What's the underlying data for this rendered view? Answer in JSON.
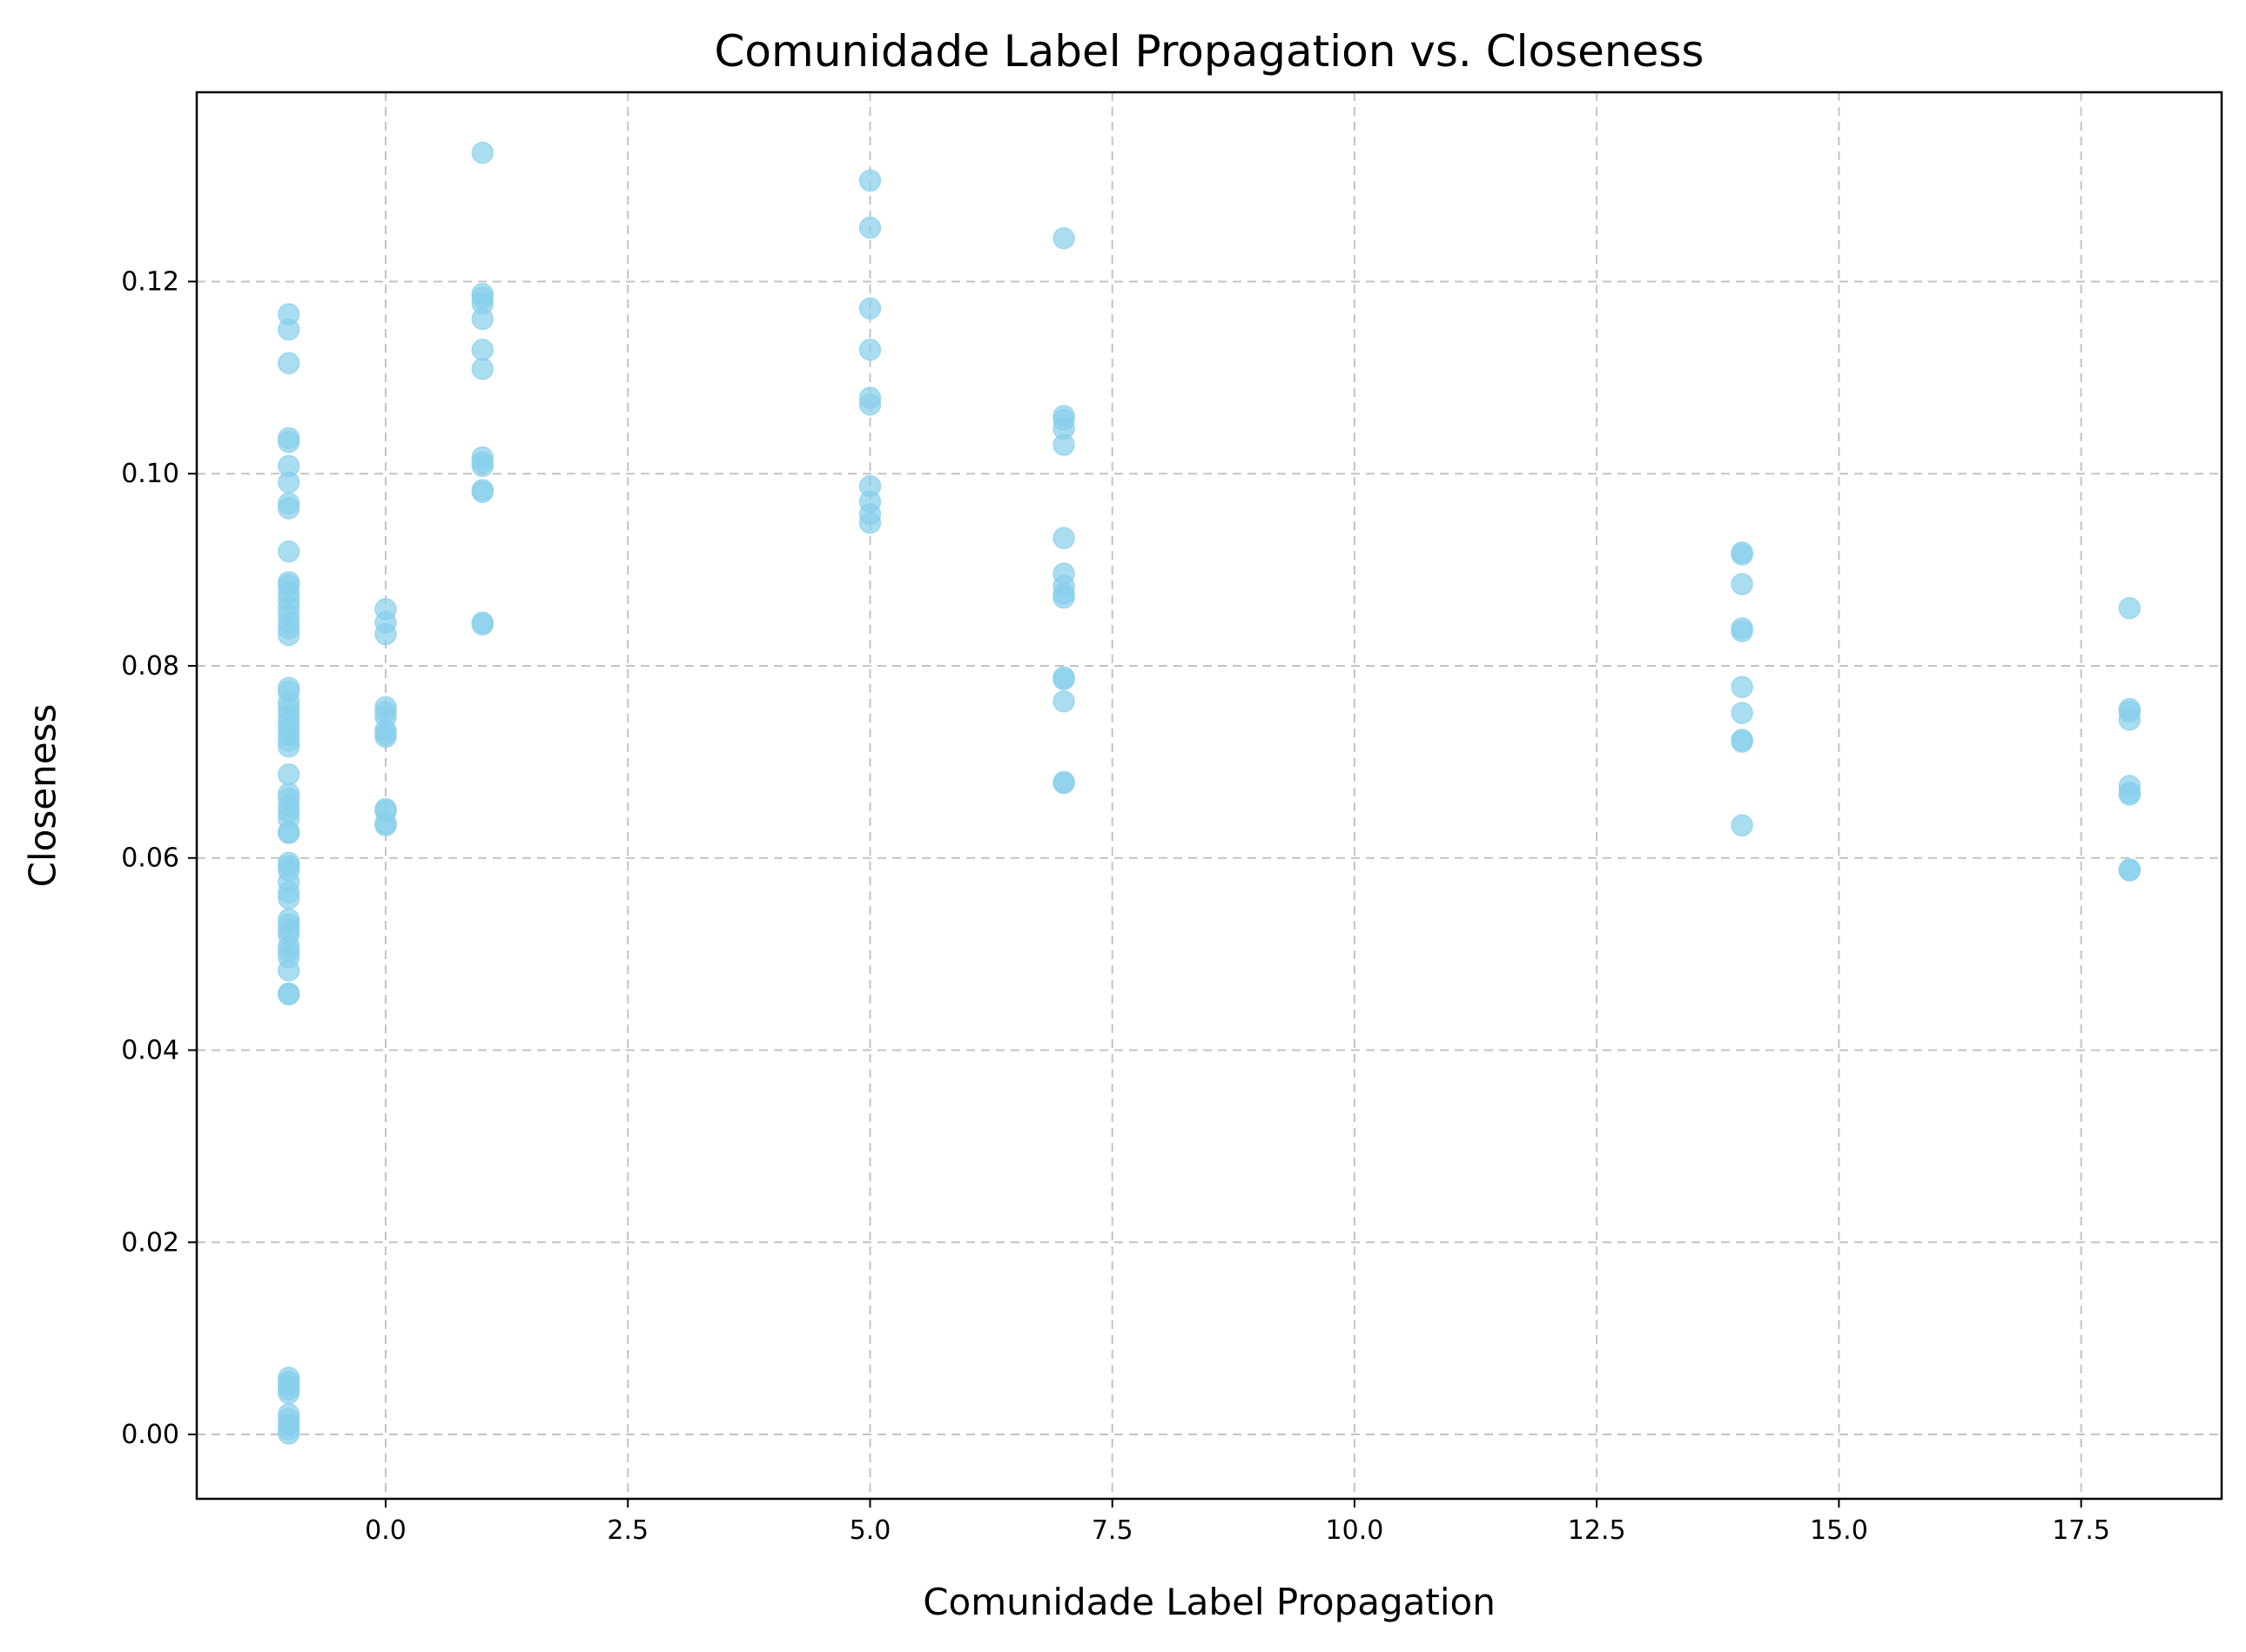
{
  "chart_data": {
    "type": "scatter",
    "title": "Comunidade Label Propagation vs. Closeness",
    "xlabel": "Comunidade Label Propagation",
    "ylabel": "Closeness",
    "xlim": [
      -1.95,
      18.95
    ],
    "ylim": [
      -0.0067,
      0.1397
    ],
    "xticks": [
      0.0,
      2.5,
      5.0,
      7.5,
      10.0,
      12.5,
      15.0,
      17.5
    ],
    "xtick_labels": [
      "0.0",
      "2.5",
      "5.0",
      "7.5",
      "10.0",
      "12.5",
      "15.0",
      "17.5"
    ],
    "yticks": [
      0.0,
      0.02,
      0.04,
      0.06,
      0.08,
      0.1,
      0.12
    ],
    "ytick_labels": [
      "0.00",
      "0.02",
      "0.04",
      "0.06",
      "0.08",
      "0.10",
      "0.12"
    ],
    "grid": true,
    "marker_color": "#87CEEB",
    "marker_alpha": 0.7,
    "series": [
      {
        "points": [
          [
            -1,
            0.1166
          ],
          [
            -1,
            0.115
          ],
          [
            -1,
            0.1115
          ],
          [
            -1,
            0.1037
          ],
          [
            -1,
            0.1033
          ],
          [
            -1,
            0.1008
          ],
          [
            -1,
            0.0991
          ],
          [
            -1,
            0.0969
          ],
          [
            -1,
            0.0964
          ],
          [
            -1,
            0.0919
          ],
          [
            -1,
            0.0887
          ],
          [
            -1,
            0.0884
          ],
          [
            -1,
            0.0876
          ],
          [
            -1,
            0.0869
          ],
          [
            -1,
            0.0861
          ],
          [
            -1,
            0.0853
          ],
          [
            -1,
            0.0845
          ],
          [
            -1,
            0.0839
          ],
          [
            -1,
            0.0832
          ],
          [
            -1,
            0.0777
          ],
          [
            -1,
            0.0773
          ],
          [
            -1,
            0.0762
          ],
          [
            -1,
            0.0755
          ],
          [
            -1,
            0.0748
          ],
          [
            -1,
            0.0741
          ],
          [
            -1,
            0.0735
          ],
          [
            -1,
            0.0728
          ],
          [
            -1,
            0.0722
          ],
          [
            -1,
            0.0716
          ],
          [
            -1,
            0.0687
          ],
          [
            -1,
            0.0667
          ],
          [
            -1,
            0.0662
          ],
          [
            -1,
            0.0654
          ],
          [
            -1,
            0.0648
          ],
          [
            -1,
            0.0641
          ],
          [
            -1,
            0.0627
          ],
          [
            -1,
            0.0626
          ],
          [
            -1,
            0.0595
          ],
          [
            -1,
            0.0592
          ],
          [
            -1,
            0.0587
          ],
          [
            -1,
            0.0575
          ],
          [
            -1,
            0.0564
          ],
          [
            -1,
            0.0558
          ],
          [
            -1,
            0.0536
          ],
          [
            -1,
            0.0531
          ],
          [
            -1,
            0.0525
          ],
          [
            -1,
            0.052
          ],
          [
            -1,
            0.0508
          ],
          [
            -1,
            0.0503
          ],
          [
            -1,
            0.0497
          ],
          [
            -1,
            0.0483
          ],
          [
            -1,
            0.0459
          ],
          [
            -1,
            0.0458
          ],
          [
            -1,
            0.0059
          ],
          [
            -1,
            0.0055
          ],
          [
            -1,
            0.0051
          ],
          [
            -1,
            0.0047
          ],
          [
            -1,
            0.0043
          ],
          [
            -1,
            0.0021
          ],
          [
            -1,
            0.0016
          ],
          [
            -1,
            0.001
          ],
          [
            -1,
            0.0005
          ],
          [
            -1,
            0.0001
          ],
          [
            0,
            0.0859
          ],
          [
            0,
            0.0845
          ],
          [
            0,
            0.0833
          ],
          [
            0,
            0.0757
          ],
          [
            0,
            0.0752
          ],
          [
            0,
            0.0747
          ],
          [
            0,
            0.0733
          ],
          [
            0,
            0.0729
          ],
          [
            0,
            0.0726
          ],
          [
            0,
            0.0651
          ],
          [
            0,
            0.0649
          ],
          [
            0,
            0.0636
          ],
          [
            0,
            0.0634
          ],
          [
            1,
            0.1334
          ],
          [
            1,
            0.1187
          ],
          [
            1,
            0.1183
          ],
          [
            1,
            0.1177
          ],
          [
            1,
            0.1161
          ],
          [
            1,
            0.1129
          ],
          [
            1,
            0.1109
          ],
          [
            1,
            0.1017
          ],
          [
            1,
            0.1012
          ],
          [
            1,
            0.1008
          ],
          [
            1,
            0.0983
          ],
          [
            1,
            0.0981
          ],
          [
            1,
            0.0845
          ],
          [
            1,
            0.0843
          ],
          [
            5,
            0.1305
          ],
          [
            5,
            0.1256
          ],
          [
            5,
            0.1172
          ],
          [
            5,
            0.1129
          ],
          [
            5,
            0.1079
          ],
          [
            5,
            0.1072
          ],
          [
            5,
            0.0987
          ],
          [
            5,
            0.0971
          ],
          [
            5,
            0.0958
          ],
          [
            5,
            0.0949
          ],
          [
            7,
            0.1245
          ],
          [
            7,
            0.106
          ],
          [
            7,
            0.1056
          ],
          [
            7,
            0.1047
          ],
          [
            7,
            0.103
          ],
          [
            7,
            0.0933
          ],
          [
            7,
            0.0896
          ],
          [
            7,
            0.0883
          ],
          [
            7,
            0.0875
          ],
          [
            7,
            0.0871
          ],
          [
            7,
            0.0788
          ],
          [
            7,
            0.0786
          ],
          [
            7,
            0.0763
          ],
          [
            7,
            0.0679
          ],
          [
            7,
            0.0678
          ],
          [
            14,
            0.0918
          ],
          [
            14,
            0.0916
          ],
          [
            14,
            0.0885
          ],
          [
            14,
            0.0839
          ],
          [
            14,
            0.0836
          ],
          [
            14,
            0.0778
          ],
          [
            14,
            0.0751
          ],
          [
            14,
            0.0723
          ],
          [
            14,
            0.0721
          ],
          [
            14,
            0.0634
          ],
          [
            18,
            0.086
          ],
          [
            18,
            0.0755
          ],
          [
            18,
            0.0752
          ],
          [
            18,
            0.0744
          ],
          [
            18,
            0.0675
          ],
          [
            18,
            0.0668
          ],
          [
            18,
            0.0666
          ],
          [
            18,
            0.0588
          ],
          [
            18,
            0.0587
          ]
        ]
      }
    ]
  }
}
